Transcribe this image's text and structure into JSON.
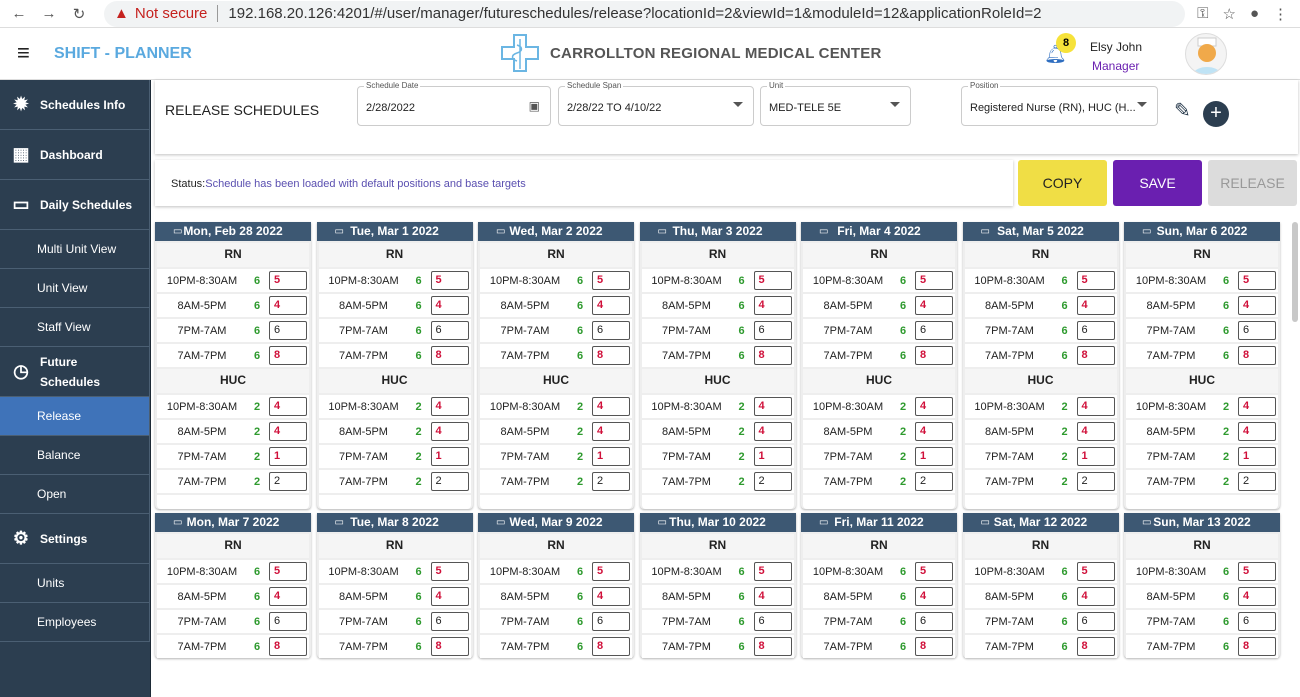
{
  "browser": {
    "not_secure": "Not secure",
    "url": "192.168.20.126:4201/#/user/manager/futureschedules/release?locationId=2&viewId=1&moduleId=12&applicationRoleId=2"
  },
  "header": {
    "brand": "SHIFT - PLANNER",
    "org": "CARROLLTON REGIONAL MEDICAL CENTER",
    "notifications": "8",
    "user_name": "Elsy John",
    "user_role": "Manager"
  },
  "sidebar": {
    "items": [
      {
        "label": "Schedules Info",
        "icon": "alert-badge-icon",
        "type": "main"
      },
      {
        "label": "Dashboard",
        "icon": "dashboard-icon",
        "type": "main"
      },
      {
        "label": "Daily Schedules",
        "icon": "calendar-icon",
        "type": "main"
      },
      {
        "label": "Multi Unit View",
        "type": "sub"
      },
      {
        "label": "Unit View",
        "type": "sub"
      },
      {
        "label": "Staff View",
        "type": "sub"
      },
      {
        "label": "Future Schedules",
        "icon": "clock-icon",
        "type": "main"
      },
      {
        "label": "Release",
        "type": "sub",
        "active": true
      },
      {
        "label": "Balance",
        "type": "sub"
      },
      {
        "label": "Open",
        "type": "sub"
      },
      {
        "label": "Settings",
        "icon": "gear-icon",
        "type": "main"
      },
      {
        "label": "Units",
        "type": "sub"
      },
      {
        "label": "Employees",
        "type": "sub"
      }
    ]
  },
  "filters": {
    "page_title": "RELEASE SCHEDULES",
    "schedule_date": {
      "label": "Schedule Date",
      "value": "2/28/2022"
    },
    "schedule_span": {
      "label": "Schedule Span",
      "value": "2/28/22 TO 4/10/22"
    },
    "unit": {
      "label": "Unit",
      "value": "MED-TELE 5E"
    },
    "position": {
      "label": "Position",
      "value": "Registered Nurse (RN), HUC (H..."
    }
  },
  "status": {
    "label": "Status:",
    "value": "Schedule has been loaded with default positions and base targets"
  },
  "actions": {
    "copy": "COPY",
    "save": "SAVE",
    "release": "RELEASE"
  },
  "colors": {
    "sidebar": "#2c3e50",
    "active": "#3f73b9",
    "save": "#6a1fb0",
    "copy": "#f0de45",
    "target": "#2e9a2e",
    "mismatch": "#d0103a"
  },
  "days": [
    "Mon, Feb 28 2022",
    "Tue, Mar 1 2022",
    "Wed, Mar 2 2022",
    "Thu, Mar 3 2022",
    "Fri, Mar 4 2022",
    "Sat, Mar 5 2022",
    "Sun, Mar 6 2022",
    "Mon, Mar 7 2022",
    "Tue, Mar 8 2022",
    "Wed, Mar 9 2022",
    "Thu, Mar 10 2022",
    "Fri, Mar 11 2022",
    "Sat, Mar 12 2022",
    "Sun, Mar 13 2022"
  ],
  "positions": [
    {
      "name": "RN",
      "shifts": [
        {
          "shift": "10PM-8:30AM",
          "target": "6",
          "value": "5"
        },
        {
          "shift": "8AM-5PM",
          "target": "6",
          "value": "4"
        },
        {
          "shift": "7PM-7AM",
          "target": "6",
          "value": "6"
        },
        {
          "shift": "7AM-7PM",
          "target": "6",
          "value": "8"
        }
      ]
    },
    {
      "name": "HUC",
      "shifts": [
        {
          "shift": "10PM-8:30AM",
          "target": "2",
          "value": "4"
        },
        {
          "shift": "8AM-5PM",
          "target": "2",
          "value": "4"
        },
        {
          "shift": "7PM-7AM",
          "target": "2",
          "value": "1"
        },
        {
          "shift": "7AM-7PM",
          "target": "2",
          "value": "2"
        }
      ]
    }
  ]
}
